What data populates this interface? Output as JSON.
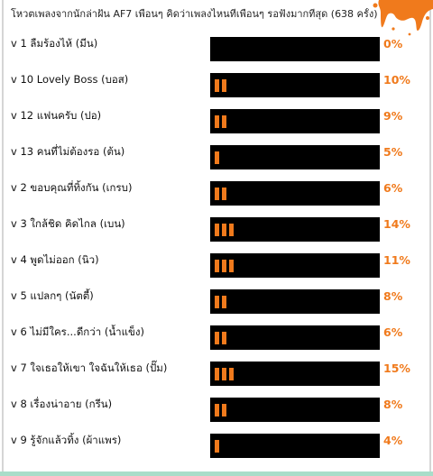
{
  "poll": {
    "title": "โหวตเพลงจากนักล่าฝัน AF7 เพื่อนๆ คิดว่าเพลงไหนที่เพื่อนๆ รอฟังมากที่สุด (638 ครั้ง)",
    "accent_color": "#f07a1c",
    "bar_track_color": "#000000"
  },
  "chart_data": {
    "type": "bar",
    "title": "โหวตเพลงจากนักล่าฝัน AF7 เพื่อนๆ คิดว่าเพลงไหนที่เพื่อนๆ รอฟังมากที่สุด (638 ครั้ง)",
    "categories": [
      "v 1 ลืมร้องไห้ (มีน)",
      "v 10 Lovely Boss (บอส)",
      "v 12 แฟนครับ (ปอ)",
      "v 13 คนที่ไม่ต้องรอ (ต้น)",
      "v 2 ขอบคุณที่ทิ้งกัน (เกรบ)",
      "v 3 ใกล้ชิด คิดไกล (เบน)",
      "v 4 พูดไม่ออก (นิว)",
      "v 5 แปลกๆ (นัตตี้)",
      "v 6 ไม่มีใคร...ดีกว่า (น้ำแข็ง)",
      "v 7 ใจเธอให้เขา ใจฉันให้เธอ (ปั๊ม)",
      "v 8 เรื่องน่าอาย (กรีน)",
      "v 9 รู้จักแล้วทิ้ง (ผ้าแพร)"
    ],
    "values": [
      0,
      10,
      9,
      5,
      6,
      14,
      11,
      8,
      6,
      15,
      8,
      4
    ],
    "value_labels": [
      "0%",
      "10%",
      "9%",
      "5%",
      "6%",
      "14%",
      "11%",
      "8%",
      "6%",
      "15%",
      "8%",
      "4%"
    ],
    "unit": "%"
  }
}
